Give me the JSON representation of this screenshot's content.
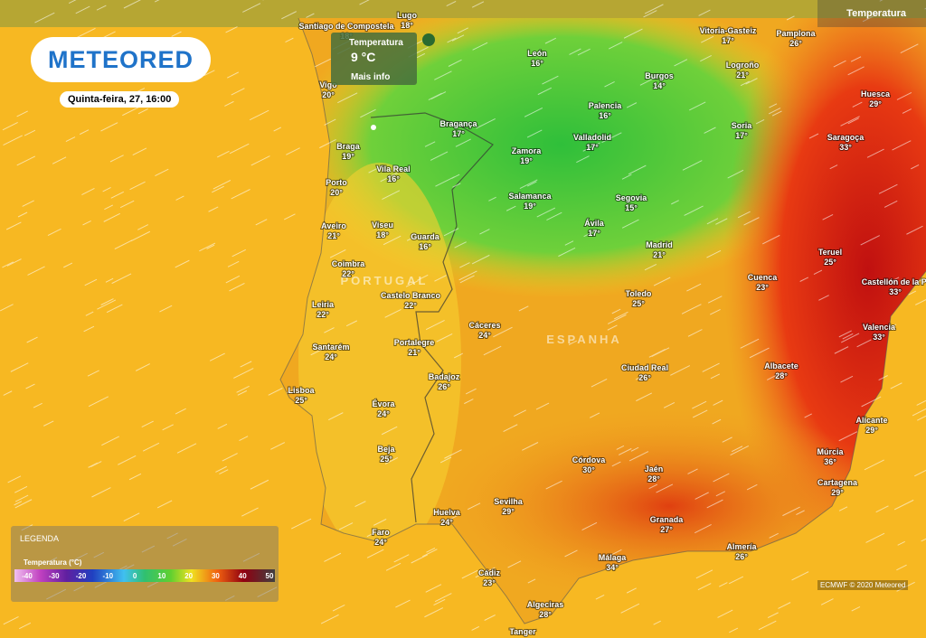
{
  "header": {
    "logo": "METEORED",
    "datetime": "Quinta-feira, 27, 16:00",
    "layer": "Temperatura"
  },
  "tooltip": {
    "title": "Temperatura",
    "value": "9 °C",
    "link": "Mais info"
  },
  "regions": [
    "PORTUGAL",
    "ESPANHA"
  ],
  "cities": [
    {
      "name": "Santiago de Compostela",
      "temp": "18°"
    },
    {
      "name": "Lugo",
      "temp": "18°"
    },
    {
      "name": "Vigo",
      "temp": "20°"
    },
    {
      "name": "Braga",
      "temp": "19°"
    },
    {
      "name": "Porto",
      "temp": "20°"
    },
    {
      "name": "Aveiro",
      "temp": "21°"
    },
    {
      "name": "Coimbra",
      "temp": "22°"
    },
    {
      "name": "Leiria",
      "temp": "22°"
    },
    {
      "name": "Santarém",
      "temp": "24°"
    },
    {
      "name": "Lisboa",
      "temp": "25°"
    },
    {
      "name": "Évora",
      "temp": "24°"
    },
    {
      "name": "Beja",
      "temp": "25°"
    },
    {
      "name": "Faro",
      "temp": "24°"
    },
    {
      "name": "Vila Real",
      "temp": "16°"
    },
    {
      "name": "Viseu",
      "temp": "18°"
    },
    {
      "name": "Guarda",
      "temp": "16°"
    },
    {
      "name": "Castelo Branco",
      "temp": "22°"
    },
    {
      "name": "Portalegre",
      "temp": "21°"
    },
    {
      "name": "Bragança",
      "temp": "17°"
    },
    {
      "name": "León",
      "temp": "16°"
    },
    {
      "name": "Palencia",
      "temp": "16°"
    },
    {
      "name": "Burgos",
      "temp": "14°"
    },
    {
      "name": "Zamora",
      "temp": "19°"
    },
    {
      "name": "Valladolid",
      "temp": "17°"
    },
    {
      "name": "Salamanca",
      "temp": "19°"
    },
    {
      "name": "Segovia",
      "temp": "15°"
    },
    {
      "name": "Ávila",
      "temp": "17°"
    },
    {
      "name": "Madrid",
      "temp": "21°"
    },
    {
      "name": "Vitoria-Gasteiz",
      "temp": "17°"
    },
    {
      "name": "Pamplona",
      "temp": "26°"
    },
    {
      "name": "Logroño",
      "temp": "21°"
    },
    {
      "name": "Soria",
      "temp": "17°"
    },
    {
      "name": "Huesca",
      "temp": "29°"
    },
    {
      "name": "Saragoça",
      "temp": "33°"
    },
    {
      "name": "Teruel",
      "temp": "25°"
    },
    {
      "name": "Cuenca",
      "temp": "23°"
    },
    {
      "name": "Castellón de la Pl",
      "temp": "33°"
    },
    {
      "name": "Toledo",
      "temp": "25°"
    },
    {
      "name": "Cáceres",
      "temp": "24°"
    },
    {
      "name": "Valencia",
      "temp": "33°"
    },
    {
      "name": "Badajoz",
      "temp": "26°"
    },
    {
      "name": "Ciudad Real",
      "temp": "26°"
    },
    {
      "name": "Albacete",
      "temp": "28°"
    },
    {
      "name": "Alicante",
      "temp": "29°"
    },
    {
      "name": "Múrcia",
      "temp": "36°"
    },
    {
      "name": "Córdova",
      "temp": "30°"
    },
    {
      "name": "Jaén",
      "temp": "28°"
    },
    {
      "name": "Cartagena",
      "temp": "29°"
    },
    {
      "name": "Sevilha",
      "temp": "29°"
    },
    {
      "name": "Huelva",
      "temp": "24°"
    },
    {
      "name": "Granada",
      "temp": "27°"
    },
    {
      "name": "Almería",
      "temp": "26°"
    },
    {
      "name": "Málaga",
      "temp": "34°"
    },
    {
      "name": "Cádiz",
      "temp": "23°"
    },
    {
      "name": "Algeciras",
      "temp": "28°"
    },
    {
      "name": "Tanger",
      "temp": null
    }
  ],
  "legend": {
    "title": "LEGENDA",
    "subtitle": "Temperatura (°C)",
    "ticks": [
      -40,
      -30,
      -20,
      -10,
      0,
      10,
      20,
      30,
      40,
      50
    ]
  },
  "attribution": "ECMWF © 2020 Meteored"
}
